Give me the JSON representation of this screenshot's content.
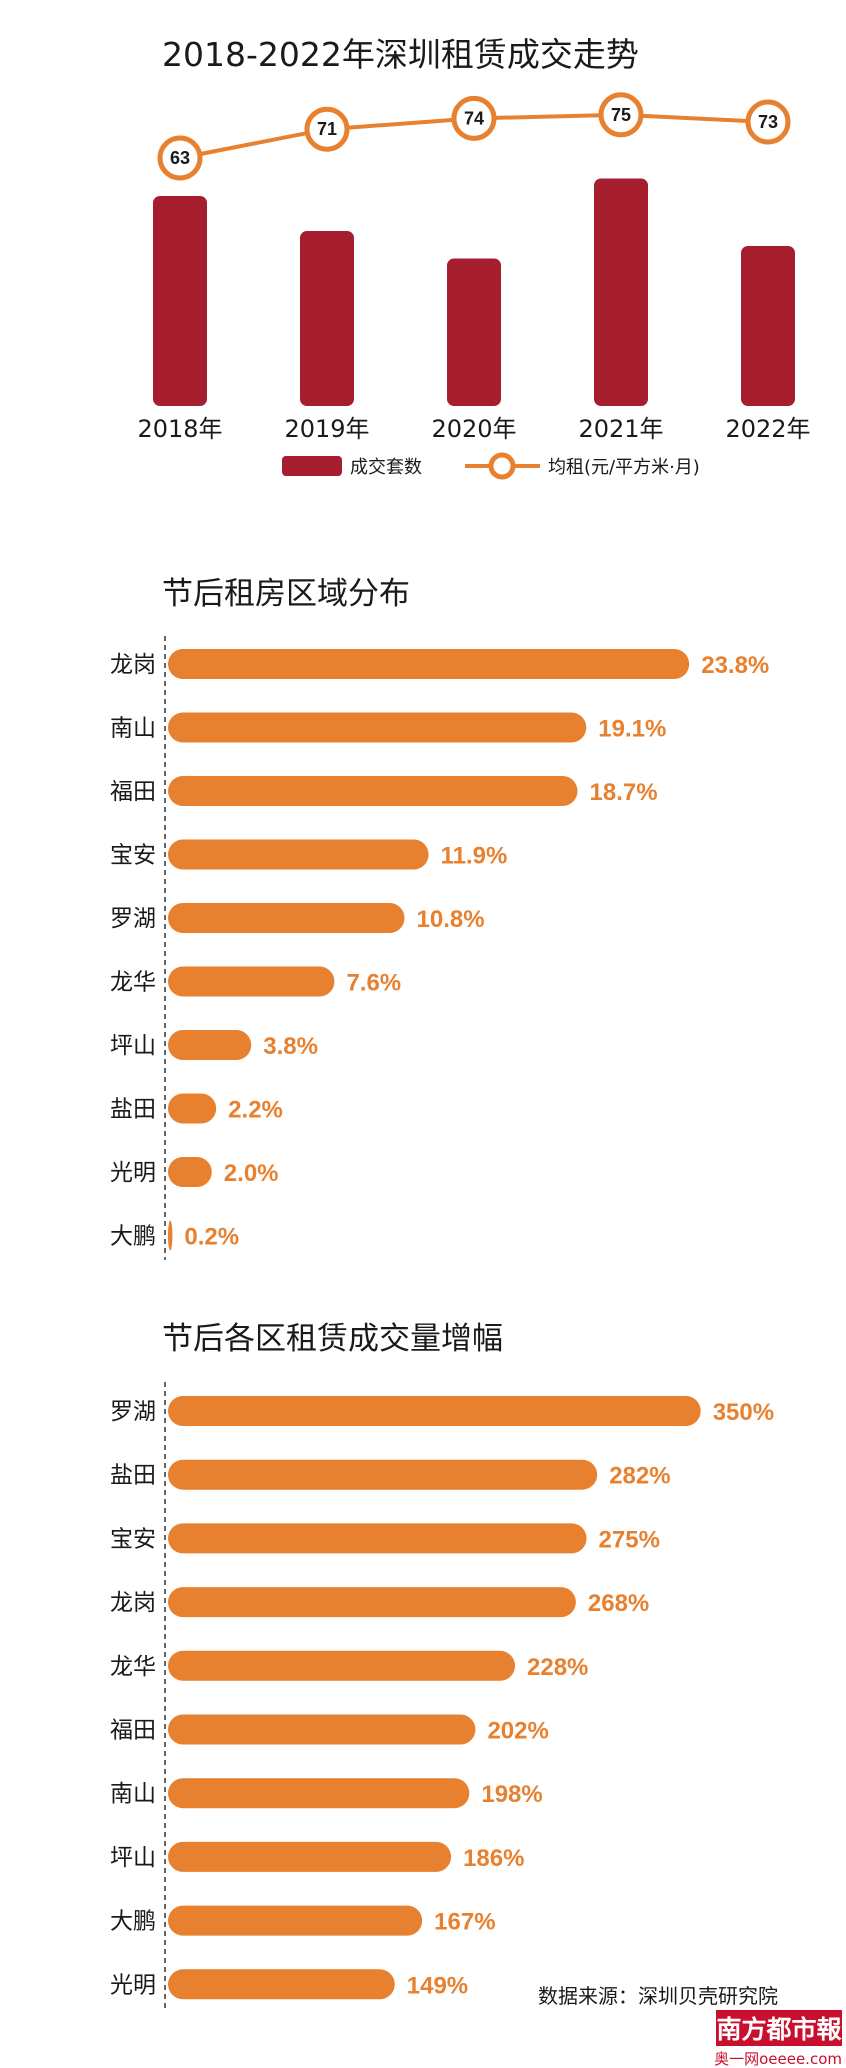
{
  "chart_data": [
    {
      "type": "bar",
      "title": "2018-2022年深圳租赁成交走势",
      "categories": [
        "2018年",
        "2019年",
        "2020年",
        "2021年",
        "2022年"
      ],
      "series": [
        {
          "name": "成交套数",
          "type": "bar",
          "values": [
            84,
            70,
            59,
            91,
            64
          ],
          "color": "#a61d2e"
        },
        {
          "name": "均租(元/平方米·月)",
          "type": "line",
          "values": [
            63,
            71,
            74,
            75,
            73
          ],
          "color": "#e8812f"
        }
      ],
      "legend_position": "bottom",
      "grid": false
    },
    {
      "type": "bar",
      "orientation": "horizontal",
      "title": "节后租房区域分布",
      "categories": [
        "龙岗",
        "南山",
        "福田",
        "宝安",
        "罗湖",
        "龙华",
        "坪山",
        "盐田",
        "光明",
        "大鹏"
      ],
      "values": [
        23.8,
        19.1,
        18.7,
        11.9,
        10.8,
        7.6,
        3.8,
        2.2,
        2.0,
        0.2
      ],
      "labels": [
        "23.8%",
        "19.1%",
        "18.7%",
        "11.9%",
        "10.8%",
        "7.6%",
        "3.8%",
        "2.2%",
        "2.0%",
        "0.2%"
      ],
      "color": "#e8812f"
    },
    {
      "type": "bar",
      "orientation": "horizontal",
      "title": "节后各区租赁成交量增幅",
      "categories": [
        "罗湖",
        "盐田",
        "宝安",
        "龙岗",
        "龙华",
        "福田",
        "南山",
        "坪山",
        "大鹏",
        "光明"
      ],
      "values": [
        350,
        282,
        275,
        268,
        228,
        202,
        198,
        186,
        167,
        149
      ],
      "labels": [
        "350%",
        "282%",
        "275%",
        "268%",
        "228%",
        "202%",
        "198%",
        "186%",
        "167%",
        "149%"
      ],
      "color": "#e8812f"
    }
  ],
  "source": "数据来源：深圳贝壳研究院",
  "watermark": {
    "text": "南方都市報",
    "sub": "奥一网oeeee.com",
    "color": "#c8102e"
  }
}
